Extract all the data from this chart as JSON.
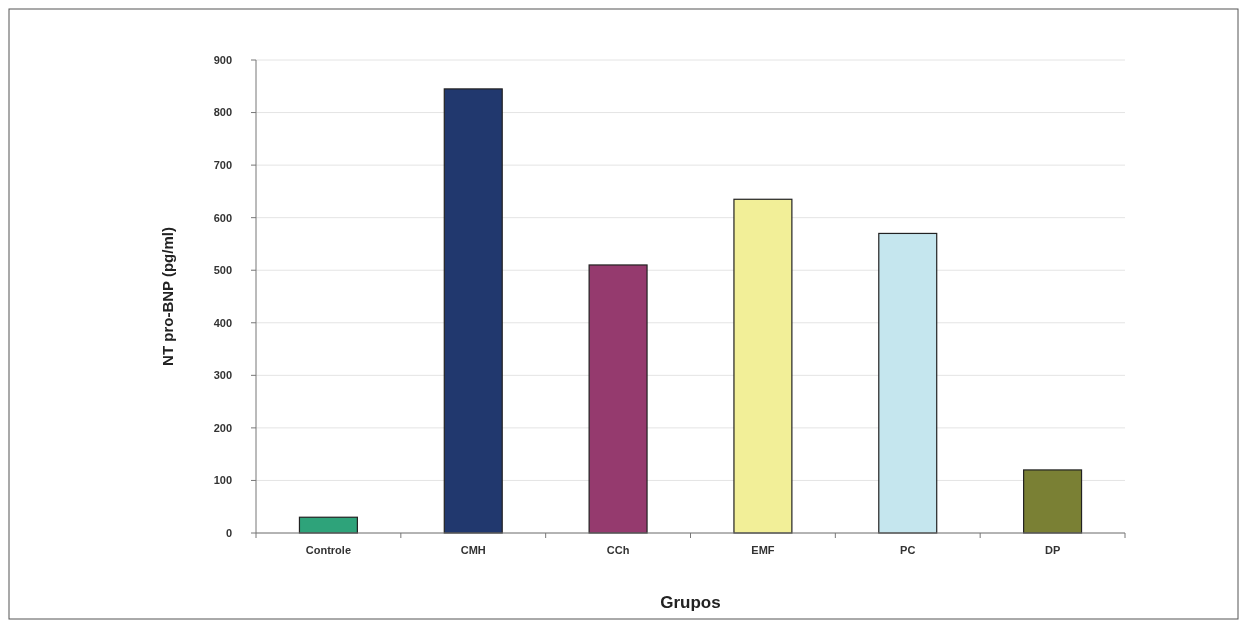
{
  "chart_data": {
    "type": "bar",
    "xlabel": "Grupos",
    "ylabel": "NT pro-BNP (pg/ml)",
    "categories": [
      "Controle",
      "CMH",
      "CCh",
      "EMF",
      "PC",
      "DP"
    ],
    "values": [
      30,
      845,
      510,
      635,
      570,
      120
    ],
    "colors": [
      "#2ea37a",
      "#21386e",
      "#953a6e",
      "#f2ef98",
      "#c5e6ee",
      "#7a8034"
    ],
    "ylim": [
      0,
      900
    ],
    "yticks": [
      0,
      100,
      200,
      300,
      400,
      500,
      600,
      700,
      800,
      900
    ],
    "grid": "y"
  }
}
